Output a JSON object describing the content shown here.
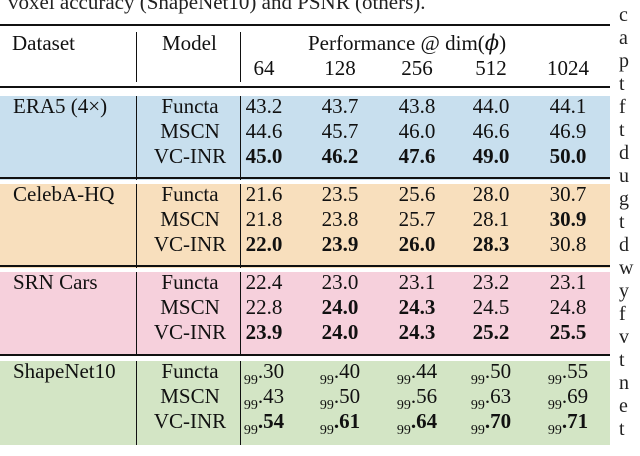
{
  "caption": "voxel accuracy (ShapeNet10) and PSNR (others).",
  "header": {
    "dataset": "Dataset",
    "model": "Model",
    "performance_prefix": "Performance @ dim(",
    "phi": "ϕ",
    "performance_suffix": ")",
    "dims": [
      "64",
      "128",
      "256",
      "512",
      "1024"
    ]
  },
  "colors": {
    "era5": "#c8dfee",
    "celeba": "#f8dfbd",
    "srn": "#f6d0dc",
    "shapenet": "#d3e5c5"
  },
  "groups": [
    {
      "dataset": "ERA5 (4×)",
      "rows": [
        {
          "model": "Functa",
          "values": [
            "43.2",
            "43.7",
            "43.8",
            "44.0",
            "44.1"
          ],
          "bold": [
            false,
            false,
            false,
            false,
            false
          ]
        },
        {
          "model": "MSCN",
          "values": [
            "44.6",
            "45.7",
            "46.0",
            "46.6",
            "46.9"
          ],
          "bold": [
            false,
            false,
            false,
            false,
            false
          ]
        },
        {
          "model": "VC-INR",
          "values": [
            "45.0",
            "46.2",
            "47.6",
            "49.0",
            "50.0"
          ],
          "bold": [
            true,
            true,
            true,
            true,
            true
          ]
        }
      ]
    },
    {
      "dataset": "CelebA-HQ",
      "rows": [
        {
          "model": "Functa",
          "values": [
            "21.6",
            "23.5",
            "25.6",
            "28.0",
            "30.7"
          ],
          "bold": [
            false,
            false,
            false,
            false,
            false
          ]
        },
        {
          "model": "MSCN",
          "values": [
            "21.8",
            "23.8",
            "25.7",
            "28.1",
            "30.9"
          ],
          "bold": [
            false,
            false,
            false,
            false,
            true
          ]
        },
        {
          "model": "VC-INR",
          "values": [
            "22.0",
            "23.9",
            "26.0",
            "28.3",
            "30.8"
          ],
          "bold": [
            true,
            true,
            true,
            true,
            false
          ]
        }
      ]
    },
    {
      "dataset": "SRN Cars",
      "rows": [
        {
          "model": "Functa",
          "values": [
            "22.4",
            "23.0",
            "23.1",
            "23.2",
            "23.1"
          ],
          "bold": [
            false,
            false,
            false,
            false,
            false
          ]
        },
        {
          "model": "MSCN",
          "values": [
            "22.8",
            "24.0",
            "24.3",
            "24.5",
            "24.8"
          ],
          "bold": [
            false,
            true,
            true,
            false,
            false
          ]
        },
        {
          "model": "VC-INR",
          "values": [
            "23.9",
            "24.0",
            "24.3",
            "25.2",
            "25.5"
          ],
          "bold": [
            true,
            true,
            true,
            true,
            true
          ]
        }
      ]
    },
    {
      "dataset": "ShapeNet10",
      "rows": [
        {
          "model": "Functa",
          "prefix": "99",
          "values": [
            ".30",
            ".40",
            ".44",
            ".50",
            ".55"
          ],
          "bold": [
            false,
            false,
            false,
            false,
            false
          ]
        },
        {
          "model": "MSCN",
          "prefix": "99",
          "values": [
            ".43",
            ".50",
            ".56",
            ".63",
            ".69"
          ],
          "bold": [
            false,
            false,
            false,
            false,
            false
          ]
        },
        {
          "model": "VC-INR",
          "prefix": "99",
          "values": [
            ".54",
            ".61",
            ".64",
            ".70",
            ".71"
          ],
          "bold": [
            true,
            true,
            true,
            true,
            true
          ]
        }
      ]
    }
  ],
  "right_margin": [
    "c",
    "a",
    "p",
    "t",
    "f",
    "t",
    "d",
    "u",
    "g",
    "t",
    "d",
    "w",
    "y",
    "f",
    "v",
    "t",
    "n",
    "e",
    "t"
  ]
}
